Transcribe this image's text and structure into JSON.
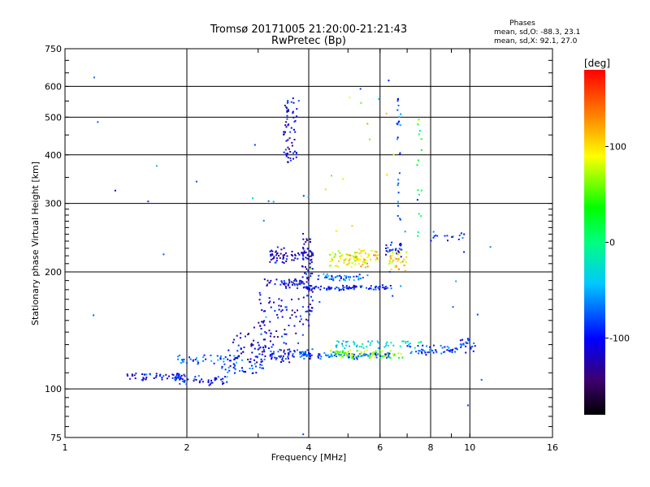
{
  "chart_data": {
    "type": "scatter",
    "title": "Tromsø 20171005 21:20:00-21:21:43",
    "subtitle": "RwPretec (Bp)",
    "xlabel": "Frequency [MHz]",
    "ylabel": "Stationary phase Virtual Height [km]",
    "x_scale": "log",
    "y_scale": "log",
    "xlim": [
      1,
      16
    ],
    "ylim": [
      75,
      750
    ],
    "x_ticks": [
      1,
      2,
      4,
      6,
      8,
      10,
      16
    ],
    "x_tick_labels": [
      "1",
      "2",
      "4",
      "6",
      "8",
      "10",
      "16"
    ],
    "y_ticks": [
      75,
      100,
      200,
      300,
      400,
      500,
      600,
      750
    ],
    "y_tick_labels": [
      "75",
      "100",
      "200",
      "300",
      "400",
      "500",
      "600",
      "750"
    ],
    "grid": true,
    "stats": {
      "heading": "Phases",
      "line_o": "mean, sd,O: -88.3, 23.1",
      "line_x": "mean, sd,X:  92.1, 27.0"
    },
    "colorbar": {
      "label": "[deg]",
      "min": -180,
      "max": 180,
      "ticks": [
        100,
        0,
        -100
      ],
      "tick_labels": [
        "100",
        "0",
        "-100"
      ]
    },
    "traces": [
      {
        "f1": 1.42,
        "f2": 1.98,
        "h1": 108,
        "h2": 107,
        "phase": -100,
        "n": 55,
        "spread": 2
      },
      {
        "f1": 1.85,
        "f2": 2.55,
        "h1": 104,
        "h2": 107,
        "phase": -95,
        "n": 45,
        "spread": 2
      },
      {
        "f1": 1.9,
        "f2": 2.7,
        "h1": 120,
        "h2": 118,
        "phase": -75,
        "n": 45,
        "spread": 3
      },
      {
        "f1": 2.4,
        "f2": 3.1,
        "h1": 112,
        "h2": 116,
        "phase": -85,
        "n": 40,
        "spread": 4
      },
      {
        "f1": 2.5,
        "f2": 3.6,
        "h1": 122,
        "h2": 138,
        "phase": -120,
        "n": 75,
        "spread": 10
      },
      {
        "f1": 3.0,
        "f2": 4.1,
        "h1": 120,
        "h2": 125,
        "phase": -100,
        "n": 60,
        "spread": 3
      },
      {
        "f1": 3.0,
        "f2": 3.9,
        "h1": 140,
        "h2": 175,
        "phase": -110,
        "n": 60,
        "spread": 10
      },
      {
        "f1": 3.8,
        "f2": 6.4,
        "h1": 123,
        "h2": 121,
        "phase": -80,
        "n": 90,
        "spread": 2
      },
      {
        "f1": 4.5,
        "f2": 6.9,
        "h1": 123,
        "h2": 123,
        "phase": 60,
        "n": 70,
        "spread": 3
      },
      {
        "f1": 4.6,
        "f2": 7.6,
        "h1": 130,
        "h2": 130,
        "phase": -30,
        "n": 50,
        "spread": 3
      },
      {
        "f1": 7.0,
        "f2": 9.5,
        "h1": 125,
        "h2": 127,
        "phase": -80,
        "n": 50,
        "spread": 3
      },
      {
        "f1": 9.4,
        "f2": 10.3,
        "h1": 126,
        "h2": 133,
        "phase": -90,
        "n": 25,
        "spread": 3
      },
      {
        "f1": 3.1,
        "f2": 4.0,
        "h1": 185,
        "h2": 190,
        "phase": -110,
        "n": 45,
        "spread": 2
      },
      {
        "f1": 3.2,
        "f2": 4.1,
        "h1": 215,
        "h2": 225,
        "phase": -120,
        "n": 70,
        "spread": 8
      },
      {
        "f1": 3.9,
        "f2": 6.4,
        "h1": 181,
        "h2": 183,
        "phase": -100,
        "n": 85,
        "spread": 2
      },
      {
        "f1": 4.2,
        "f2": 5.6,
        "h1": 195,
        "h2": 190,
        "phase": -70,
        "n": 45,
        "spread": 3
      },
      {
        "f1": 4.5,
        "f2": 5.6,
        "h1": 210,
        "h2": 220,
        "phase": 90,
        "n": 65,
        "spread": 7
      },
      {
        "f1": 5.2,
        "f2": 6.0,
        "h1": 210,
        "h2": 230,
        "phase": 110,
        "n": 30,
        "spread": 6
      },
      {
        "f1": 6.3,
        "f2": 7.0,
        "h1": 205,
        "h2": 225,
        "phase": 100,
        "n": 40,
        "spread": 6
      },
      {
        "f1": 6.2,
        "f2": 6.8,
        "h1": 222,
        "h2": 235,
        "phase": -100,
        "n": 25,
        "spread": 5
      },
      {
        "f1": 3.85,
        "f2": 4.1,
        "h1": 150,
        "h2": 250,
        "phase": -110,
        "n": 70,
        "spread": 10
      },
      {
        "f1": 3.45,
        "f2": 3.75,
        "h1": 375,
        "h2": 560,
        "phase": -110,
        "n": 65,
        "spread": 3
      },
      {
        "f1": 6.6,
        "f2": 6.75,
        "h1": 250,
        "h2": 560,
        "phase": -80,
        "n": 25,
        "spread": 6
      },
      {
        "f1": 7.4,
        "f2": 7.6,
        "h1": 245,
        "h2": 500,
        "phase": 20,
        "n": 15,
        "spread": 8
      },
      {
        "f1": 1.1,
        "f2": 12.0,
        "h1": 78,
        "h2": 620,
        "phase": -70,
        "n": 45,
        "spread": 100
      },
      {
        "f1": 4.0,
        "f2": 7.5,
        "h1": 260,
        "h2": 600,
        "phase": 90,
        "n": 14,
        "spread": 100
      },
      {
        "f1": 8.0,
        "f2": 9.8,
        "h1": 240,
        "h2": 250,
        "phase": -90,
        "n": 15,
        "spread": 3
      }
    ]
  }
}
